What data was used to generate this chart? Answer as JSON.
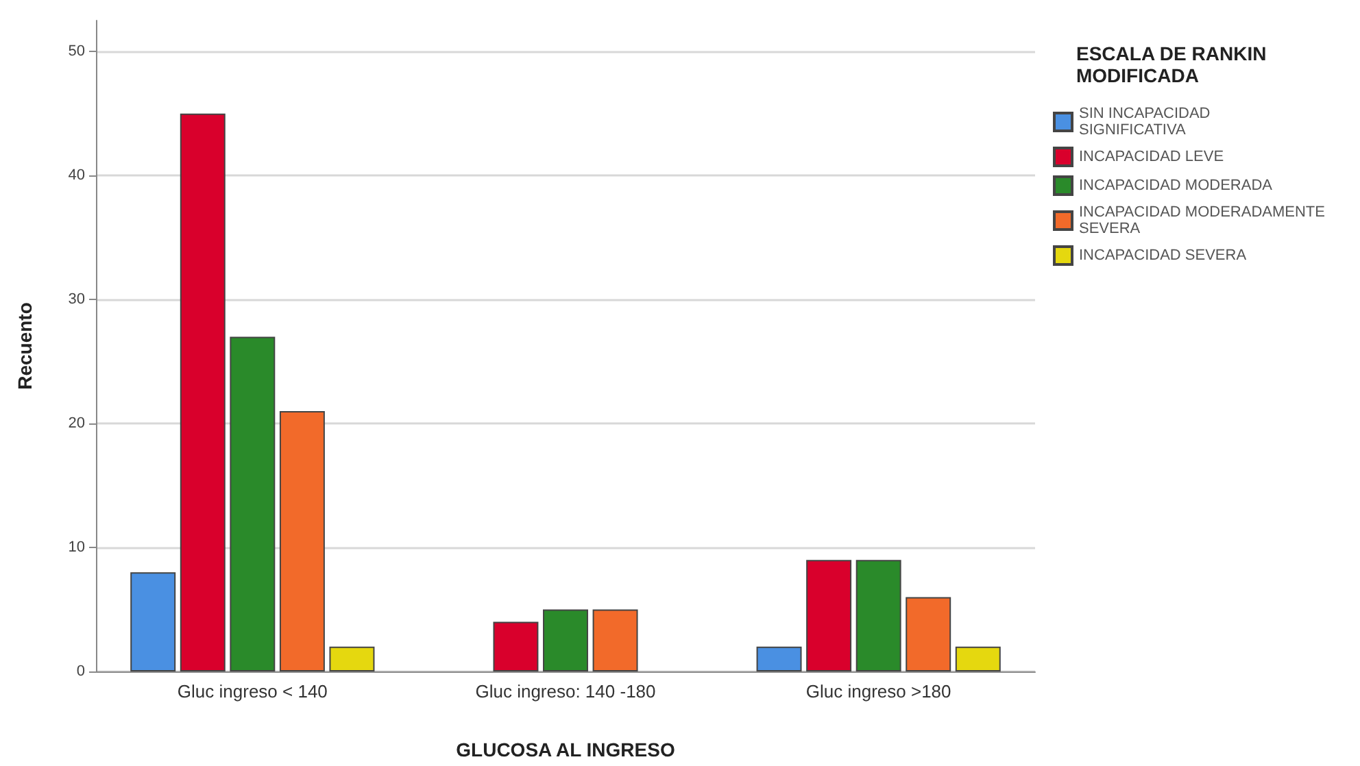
{
  "chart_data": {
    "type": "bar",
    "xlabel": "GLUCOSA AL INGRESO",
    "ylabel": "Recuento",
    "legend_title": "ESCALA DE RANKIN MODIFICADA",
    "categories": [
      "Gluc ingreso < 140",
      "Gluc ingreso: 140 -180",
      "Gluc ingreso >180"
    ],
    "series": [
      {
        "name": "SIN INCAPACIDAD SIGNIFICATIVA",
        "color": "#4a90e2",
        "values": [
          8,
          0,
          2
        ]
      },
      {
        "name": "INCAPACIDAD LEVE",
        "color": "#d9002c",
        "values": [
          45,
          4,
          9
        ]
      },
      {
        "name": "INCAPACIDAD MODERADA",
        "color": "#2a8a2a",
        "values": [
          27,
          5,
          9
        ]
      },
      {
        "name": "INCAPACIDAD MODERADAMENTE SEVERA",
        "color": "#f26a2a",
        "values": [
          21,
          5,
          6
        ]
      },
      {
        "name": "INCAPACIDAD SEVERA",
        "color": "#e5d80f",
        "values": [
          2,
          0,
          2
        ]
      }
    ],
    "ylim": [
      0,
      52.5
    ],
    "yticks": [
      0,
      10,
      20,
      30,
      40,
      50
    ],
    "grid": "y",
    "legend": "right"
  }
}
